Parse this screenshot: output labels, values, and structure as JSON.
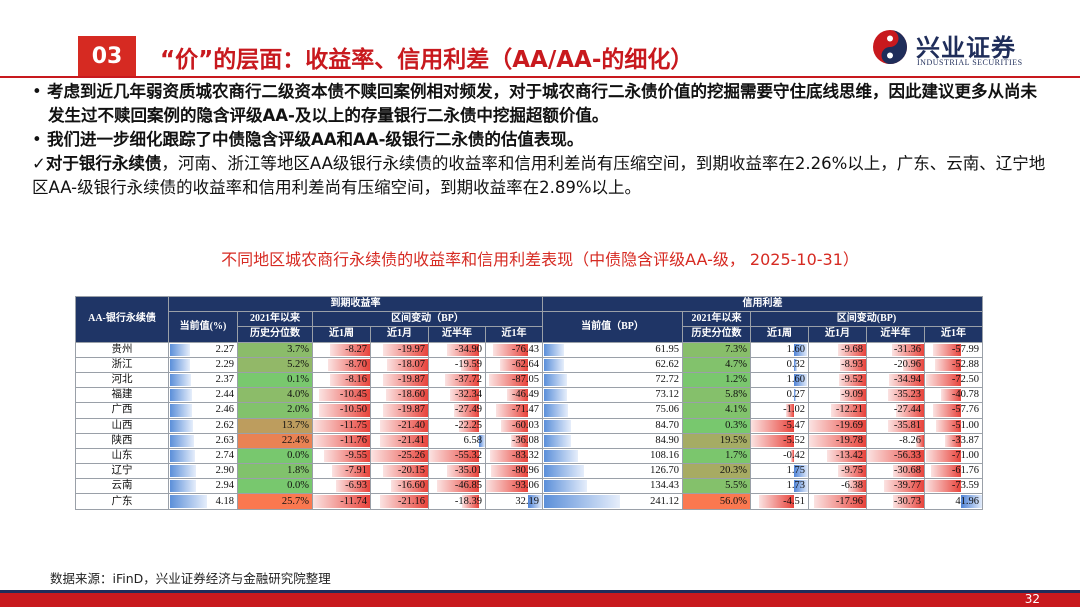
{
  "header": {
    "section_number": "03",
    "title": "“价”的层面：收益率、信用利差（AA/AA-的细化）",
    "logo_cn": "兴业证券",
    "logo_en": "INDUSTRIAL SECURITIES"
  },
  "bullets": [
    {
      "marker": "• ",
      "bold": "考虑到近几年弱资质城农商行二级资本债不赎回案例相对频发，对于城农商行二永债价值的挖掘需要守住底线思维，因此建议更多从尚未发生过不赎回案例的隐含评级AA-及以上的存量银行二永债中挖掘超额价值。",
      "rest": ""
    },
    {
      "marker": "• ",
      "bold": "我们进一步细化跟踪了中债隐含评级AA和AA-级银行二永债的估值表现。",
      "rest": ""
    },
    {
      "marker": "✓",
      "bold": "对于银行永续债",
      "rest": "，河南、浙江等地区AA级银行永续债的收益率和信用利差尚有压缩空间，到期收益率在2.26%以上，广东、云南、辽宁地区AA-级银行永续债的收益率和信用利差尚有压缩空间，到期收益率在2.89%以上。"
    }
  ],
  "caption": "不同地区城农商行永续债的收益率和信用利差表现（中债隐含评级AA-级， 2025-10-31）",
  "table": {
    "corner": "AA-银行永续债",
    "group_ytm": "到期收益率",
    "group_spread": "信用利差",
    "col_current_ytm": "当前值(%)",
    "col_current_spread": "当前值（BP）",
    "col_pct_line1": "2021年以来",
    "col_pct_line2": "历史分位数",
    "col_interval": "区间变动（BP）",
    "col_interval_spread": "区间变动(BP)",
    "periods": [
      "近1周",
      "近1月",
      "近半年",
      "近1年"
    ],
    "rows": [
      {
        "region": "贵州",
        "ytm": "2.27",
        "ytm_pct": "3.7%",
        "y_w": "-8.27",
        "y_m": "-19.97",
        "y_h": "-34.90",
        "y_y": "-76.43",
        "sp": "61.95",
        "sp_pct": "7.3%",
        "s_w": "1.60",
        "s_m": "-9.68",
        "s_h": "-31.36",
        "s_y": "-57.99"
      },
      {
        "region": "浙江",
        "ytm": "2.29",
        "ytm_pct": "5.2%",
        "y_w": "-8.70",
        "y_m": "-18.07",
        "y_h": "-19.59",
        "y_y": "-62.64",
        "sp": "62.62",
        "sp_pct": "4.7%",
        "s_w": "0.32",
        "s_m": "-8.93",
        "s_h": "-20.96",
        "s_y": "-52.88"
      },
      {
        "region": "河北",
        "ytm": "2.37",
        "ytm_pct": "0.1%",
        "y_w": "-8.16",
        "y_m": "-19.87",
        "y_h": "-37.72",
        "y_y": "-87.05",
        "sp": "72.72",
        "sp_pct": "1.2%",
        "s_w": "1.60",
        "s_m": "-9.52",
        "s_h": "-34.94",
        "s_y": "-72.50"
      },
      {
        "region": "福建",
        "ytm": "2.44",
        "ytm_pct": "4.0%",
        "y_w": "-10.45",
        "y_m": "-18.60",
        "y_h": "-32.34",
        "y_y": "-46.49",
        "sp": "73.12",
        "sp_pct": "5.8%",
        "s_w": "0.27",
        "s_m": "-9.09",
        "s_h": "-35.23",
        "s_y": "-40.78"
      },
      {
        "region": "广西",
        "ytm": "2.46",
        "ytm_pct": "2.0%",
        "y_w": "-10.50",
        "y_m": "-19.87",
        "y_h": "-27.49",
        "y_y": "-71.47",
        "sp": "75.06",
        "sp_pct": "4.1%",
        "s_w": "-1.02",
        "s_m": "-12.21",
        "s_h": "-27.44",
        "s_y": "-57.76"
      },
      {
        "region": "山西",
        "ytm": "2.62",
        "ytm_pct": "13.7%",
        "y_w": "-11.75",
        "y_m": "-21.40",
        "y_h": "-22.25",
        "y_y": "-60.03",
        "sp": "84.70",
        "sp_pct": "0.3%",
        "s_w": "-5.47",
        "s_m": "-19.69",
        "s_h": "-35.81",
        "s_y": "-51.00"
      },
      {
        "region": "陕西",
        "ytm": "2.63",
        "ytm_pct": "22.4%",
        "y_w": "-11.76",
        "y_m": "-21.41",
        "y_h": "6.58",
        "y_y": "-36.08",
        "sp": "84.90",
        "sp_pct": "19.5%",
        "s_w": "-5.52",
        "s_m": "-19.78",
        "s_h": "-8.26",
        "s_y": "-33.87"
      },
      {
        "region": "山东",
        "ytm": "2.74",
        "ytm_pct": "0.0%",
        "y_w": "-9.55",
        "y_m": "-25.26",
        "y_h": "-55.32",
        "y_y": "-83.32",
        "sp": "108.16",
        "sp_pct": "1.7%",
        "s_w": "-0.42",
        "s_m": "-13.42",
        "s_h": "-56.33",
        "s_y": "-71.00"
      },
      {
        "region": "辽宁",
        "ytm": "2.90",
        "ytm_pct": "1.8%",
        "y_w": "-7.91",
        "y_m": "-20.15",
        "y_h": "-35.01",
        "y_y": "-80.96",
        "sp": "126.70",
        "sp_pct": "20.3%",
        "s_w": "1.75",
        "s_m": "-9.75",
        "s_h": "-30.68",
        "s_y": "-61.76"
      },
      {
        "region": "云南",
        "ytm": "2.94",
        "ytm_pct": "0.0%",
        "y_w": "-6.93",
        "y_m": "-16.60",
        "y_h": "-46.85",
        "y_y": "-93.06",
        "sp": "134.43",
        "sp_pct": "5.5%",
        "s_w": "1.73",
        "s_m": "-6.38",
        "s_h": "-39.77",
        "s_y": "-73.59"
      },
      {
        "region": "广东",
        "ytm": "4.18",
        "ytm_pct": "25.7%",
        "y_w": "-11.74",
        "y_m": "-21.16",
        "y_h": "-18.39",
        "y_y": "32.19",
        "sp": "241.12",
        "sp_pct": "56.0%",
        "s_w": "-4.51",
        "s_m": "-17.96",
        "s_h": "-30.73",
        "s_y": "41.96"
      }
    ]
  },
  "source": "数据来源：iFinD，兴业证券经济与金融研究院整理",
  "page_number": "32",
  "colors": {
    "brand_red": "#c8191e",
    "header_navy": "#1f3566",
    "bar_blue": "#5b8fd9",
    "neg_red": "#e8433b",
    "pos_blue": "#4f83d6"
  }
}
